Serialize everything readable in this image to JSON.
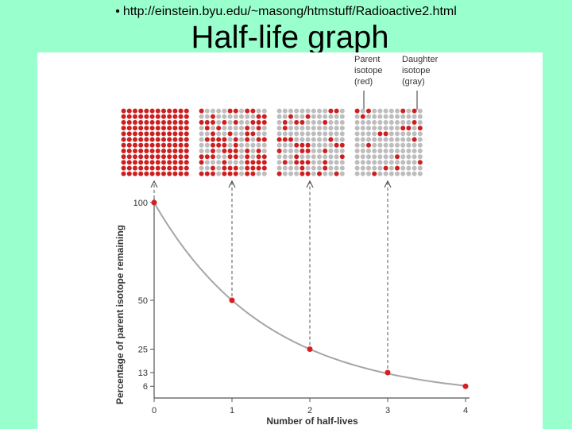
{
  "header": {
    "bullet": "•",
    "url": "http://einstein.byu.edu/~masong/htmstuff/Radioactive2.html",
    "title": "Half-life graph"
  },
  "colors": {
    "background": "#99ffcc",
    "parent": "#cc1f1f",
    "daughter": "#bdbdbd",
    "curve": "#a6a6a6",
    "point": "#d62020"
  },
  "legend": {
    "parent": [
      "Parent",
      "isotope",
      "(red)"
    ],
    "daughter": [
      "Daughter",
      "isotope",
      "(gray)"
    ]
  },
  "chart_data": {
    "type": "line",
    "xlabel": "Number of half-lives",
    "ylabel": "Percentage of parent isotope remaining",
    "x_ticks": [
      "0",
      "1",
      "2",
      "3",
      "4"
    ],
    "y_ticks": [
      {
        "label": "100",
        "value": 100
      },
      {
        "label": "50",
        "value": 50
      },
      {
        "label": "25",
        "value": 25
      },
      {
        "label": "13",
        "value": 13
      },
      {
        "label": "6",
        "value": 6
      }
    ],
    "xlim": [
      0,
      4
    ],
    "ylim": [
      0,
      100
    ],
    "points": [
      {
        "x": 0,
        "y": 100
      },
      {
        "x": 1,
        "y": 50
      },
      {
        "x": 2,
        "y": 25
      },
      {
        "x": 3,
        "y": 13
      },
      {
        "x": 4,
        "y": 6
      }
    ],
    "grids": [
      {
        "half_lives": 0,
        "parent_fraction": 1.0
      },
      {
        "half_lives": 1,
        "parent_fraction": 0.5
      },
      {
        "half_lives": 2,
        "parent_fraction": 0.25
      },
      {
        "half_lives": 3,
        "parent_fraction": 0.125
      }
    ],
    "grid_size": [
      12,
      12
    ]
  }
}
